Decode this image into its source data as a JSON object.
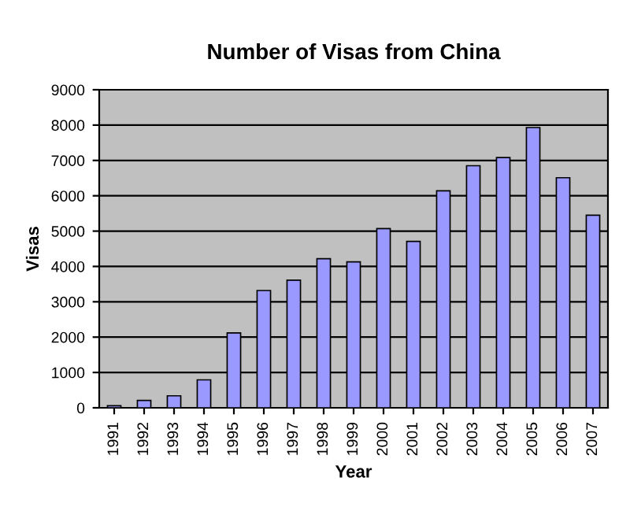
{
  "chart_data": {
    "type": "bar",
    "title": "Number of Visas from China",
    "xlabel": "Year",
    "ylabel": "Visas",
    "categories": [
      "1991",
      "1992",
      "1993",
      "1994",
      "1995",
      "1996",
      "1997",
      "1998",
      "1999",
      "2000",
      "2001",
      "2002",
      "2003",
      "2004",
      "2005",
      "2006",
      "2007"
    ],
    "values": [
      60,
      210,
      340,
      790,
      2120,
      3320,
      3610,
      4220,
      4130,
      5070,
      4710,
      6140,
      6850,
      7080,
      7930,
      6510,
      5450
    ],
    "color": "#9999ff",
    "ylim": [
      0,
      9000
    ],
    "yticks": [
      0,
      1000,
      2000,
      3000,
      4000,
      5000,
      6000,
      7000,
      8000,
      9000
    ],
    "grid": "y"
  }
}
